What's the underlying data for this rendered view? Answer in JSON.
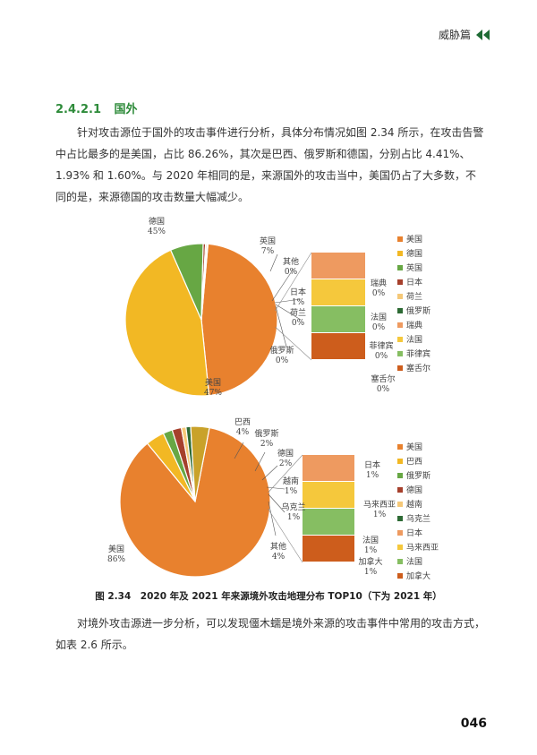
{
  "header": {
    "title": "威胁篇"
  },
  "section": {
    "number": "2.4.2.1",
    "title": "国外"
  },
  "para1": "针对攻击源位于国外的攻击事件进行分析，具体分布情况如图 2.34 所示，在攻击告警中占比最多的是美国，占比 86.26%，其次是巴西、俄罗斯和德国，分别占比 4.41%、1.93% 和 1.60%。与 2020 年相同的是，来源国外的攻击当中，美国仍占了大多数，不同的是，来源德国的攻击数量大幅减少。",
  "caption": "图 2.34　2020 年及 2021 年来源境外攻击地理分布 TOP10（下为 2021 年）",
  "para2": "对境外攻击源进一步分析，可以发现僵木蠕是境外来源的攻击事件中常用的攻击方式，如表 2.6 所示。",
  "page_number": "046",
  "colors": {
    "accent_green": "#2e8b3a",
    "header_icon": "#1e6b34"
  },
  "chart_data": [
    {
      "type": "pie",
      "title": "",
      "categories": [
        "美国",
        "德国",
        "英国",
        "日本",
        "荷兰",
        "俄罗斯",
        "瑞典",
        "法国",
        "菲律宾",
        "塞舌尔"
      ],
      "pie_slices": [
        {
          "name": "美国",
          "value": 47,
          "label": "47%",
          "color": "#e8812e"
        },
        {
          "name": "德国",
          "value": 45,
          "label": "45%",
          "color": "#f2b824"
        },
        {
          "name": "英国",
          "value": 7,
          "label": "7%",
          "color": "#67a744"
        },
        {
          "name": "日本",
          "value": 0.5,
          "label": "1%",
          "color": "#a6402c"
        },
        {
          "name": "荷兰",
          "value": 0.3,
          "label": "0%",
          "color": "#f5c878"
        },
        {
          "name": "其他",
          "value": 0.2,
          "label": "0%",
          "color": "#ffffff"
        }
      ],
      "bar_of_pie": [
        {
          "name": "瑞典",
          "label": "0%",
          "color": "#ee9a60"
        },
        {
          "name": "法国",
          "label": "0%",
          "color": "#f5c83c"
        },
        {
          "name": "菲律宾",
          "label": "0%",
          "color": "#86be62"
        },
        {
          "name": "塞舌尔",
          "label": "0%",
          "color": "#cd5d1c"
        }
      ],
      "extra_labels": [
        {
          "name": "俄罗斯",
          "label": "0%"
        }
      ],
      "legend": [
        {
          "name": "美国",
          "color": "#e8812e"
        },
        {
          "name": "德国",
          "color": "#f2b824"
        },
        {
          "name": "英国",
          "color": "#67a744"
        },
        {
          "name": "日本",
          "color": "#a6402c"
        },
        {
          "name": "荷兰",
          "color": "#f5c878"
        },
        {
          "name": "俄罗斯",
          "color": "#2d6a34"
        },
        {
          "name": "瑞典",
          "color": "#ee9a60"
        },
        {
          "name": "法国",
          "color": "#f5c83c"
        },
        {
          "name": "菲律宾",
          "color": "#86be62"
        },
        {
          "name": "塞舌尔",
          "color": "#cd5d1c"
        }
      ]
    },
    {
      "type": "pie",
      "title": "",
      "categories": [
        "美国",
        "巴西",
        "俄罗斯",
        "德国",
        "越南",
        "乌克兰",
        "日本",
        "马来西亚",
        "法国",
        "加拿大"
      ],
      "pie_slices": [
        {
          "name": "美国",
          "value": 86,
          "label": "86%",
          "color": "#e8812e"
        },
        {
          "name": "巴西",
          "value": 4,
          "label": "4%",
          "color": "#f2b824"
        },
        {
          "name": "俄罗斯",
          "value": 2,
          "label": "2%",
          "color": "#67a744"
        },
        {
          "name": "德国",
          "value": 2,
          "label": "2%",
          "color": "#a6402c"
        },
        {
          "name": "越南",
          "value": 1,
          "label": "1%",
          "color": "#f5c878"
        },
        {
          "name": "乌克兰",
          "value": 1,
          "label": "1%",
          "color": "#2d6a34"
        },
        {
          "name": "其他",
          "value": 4,
          "label": "4%",
          "color": "#c9a22a"
        }
      ],
      "bar_of_pie": [
        {
          "name": "日本",
          "label": "1%",
          "color": "#ee9a60"
        },
        {
          "name": "马来西亚",
          "label": "1%",
          "color": "#f5c83c"
        },
        {
          "name": "法国",
          "label": "1%",
          "color": "#86be62"
        },
        {
          "name": "加拿大",
          "label": "1%",
          "color": "#cd5d1c"
        }
      ],
      "extra_labels": [],
      "legend": [
        {
          "name": "美国",
          "color": "#e8812e"
        },
        {
          "name": "巴西",
          "color": "#f2b824"
        },
        {
          "name": "俄罗斯",
          "color": "#67a744"
        },
        {
          "name": "德国",
          "color": "#a6402c"
        },
        {
          "name": "越南",
          "color": "#f5c878"
        },
        {
          "name": "乌克兰",
          "color": "#2d6a34"
        },
        {
          "name": "日本",
          "color": "#ee9a60"
        },
        {
          "name": "马来西亚",
          "color": "#f5c83c"
        },
        {
          "name": "法国",
          "color": "#86be62"
        },
        {
          "name": "加拿大",
          "color": "#cd5d1c"
        }
      ]
    }
  ]
}
